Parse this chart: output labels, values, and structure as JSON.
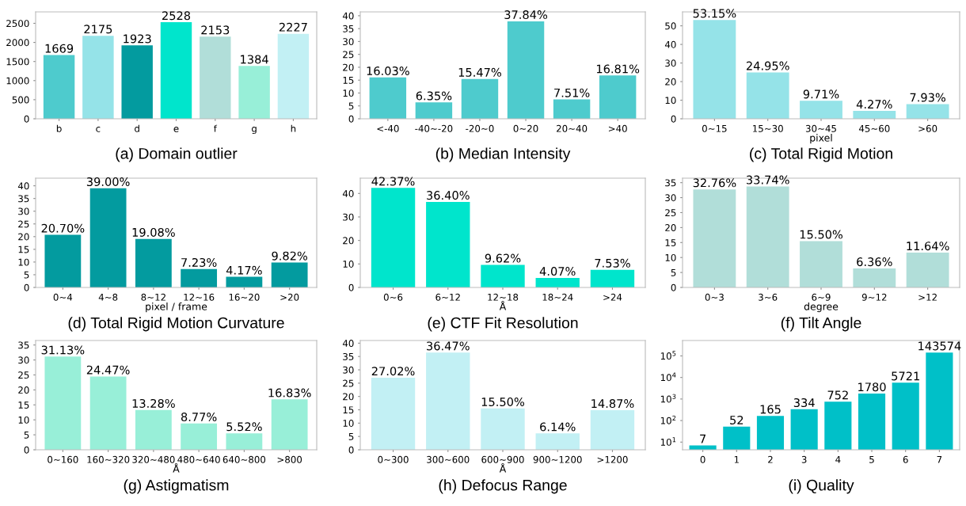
{
  "chart_data": [
    {
      "type": "bar",
      "title": "(a) Domain outlier",
      "categories": [
        "b",
        "c",
        "d",
        "e",
        "f",
        "g",
        "h"
      ],
      "values": [
        1669,
        2175,
        1923,
        2528,
        2153,
        1384,
        2227
      ],
      "colors": [
        "#4ecbcd",
        "#95e3e8",
        "#039b9f",
        "#00e5cc",
        "#b1ded9",
        "#98efd8",
        "#c2f0f4"
      ],
      "ylim": [
        0,
        2800
      ],
      "yticks": [
        0,
        500,
        1000,
        1500,
        2000,
        2500
      ],
      "data_labels": true,
      "grid": false,
      "legend": false
    },
    {
      "type": "bar",
      "title": "(b) Median Intensity",
      "categories": [
        "<-40",
        "-40~-20",
        "-20~0",
        "0~20",
        "20~40",
        ">40"
      ],
      "values": [
        16.03,
        6.35,
        15.47,
        37.84,
        7.51,
        16.81
      ],
      "value_labels": [
        "16.03%",
        "6.35%",
        "15.47%",
        "37.84%",
        "7.51%",
        "16.81%"
      ],
      "colors": [
        "#4ecbcd",
        "#4ecbcd",
        "#4ecbcd",
        "#4ecbcd",
        "#4ecbcd",
        "#4ecbcd"
      ],
      "ylim": [
        0,
        41.5
      ],
      "yticks": [
        0,
        5,
        10,
        15,
        20,
        25,
        30,
        35,
        40
      ],
      "grid": false,
      "legend": false
    },
    {
      "type": "bar",
      "title": "(c) Total Rigid Motion",
      "xlabel": "pixel",
      "categories": [
        "0~15",
        "15~30",
        "30~45",
        "45~60",
        ">60"
      ],
      "values": [
        53.15,
        24.95,
        9.71,
        4.27,
        7.93
      ],
      "value_labels": [
        "53.15%",
        "24.95%",
        "9.71%",
        "4.27%",
        "7.93%"
      ],
      "colors": [
        "#95e3e8",
        "#95e3e8",
        "#95e3e8",
        "#95e3e8",
        "#95e3e8"
      ],
      "ylim": [
        0,
        57.5
      ],
      "yticks": [
        0,
        10,
        20,
        30,
        40,
        50
      ],
      "grid": false,
      "legend": false
    },
    {
      "type": "bar",
      "title": "(d) Total Rigid Motion Curvature",
      "xlabel": "pixel / frame",
      "categories": [
        "0~4",
        "4~8",
        "8~12",
        "12~16",
        "16~20",
        ">20"
      ],
      "values": [
        20.7,
        39.0,
        19.08,
        7.23,
        4.17,
        9.82
      ],
      "value_labels": [
        "20.70%",
        "39.00%",
        "19.08%",
        "7.23%",
        "4.17%",
        "9.82%"
      ],
      "colors": [
        "#039b9f",
        "#039b9f",
        "#039b9f",
        "#039b9f",
        "#039b9f",
        "#039b9f"
      ],
      "ylim": [
        0,
        43
      ],
      "yticks": [
        0,
        5,
        10,
        15,
        20,
        25,
        30,
        35,
        40
      ],
      "grid": false,
      "legend": false
    },
    {
      "type": "bar",
      "title": "(e) CTF Fit Resolution",
      "xlabel": "Å",
      "categories": [
        "0~6",
        "6~12",
        "12~18",
        "18~24",
        ">24"
      ],
      "values": [
        42.37,
        36.4,
        9.62,
        4.07,
        7.53
      ],
      "value_labels": [
        "42.37%",
        "36.40%",
        "9.62%",
        "4.07%",
        "7.53%"
      ],
      "colors": [
        "#00e5cc",
        "#00e5cc",
        "#00e5cc",
        "#00e5cc",
        "#00e5cc"
      ],
      "ylim": [
        0,
        46.5
      ],
      "yticks": [
        0,
        10,
        20,
        30,
        40
      ],
      "grid": false,
      "legend": false
    },
    {
      "type": "bar",
      "title": "(f) Tilt Angle",
      "xlabel": "degree",
      "categories": [
        "0~3",
        "3~6",
        "6~9",
        "9~12",
        ">12"
      ],
      "values": [
        32.76,
        33.74,
        15.5,
        6.36,
        11.64
      ],
      "value_labels": [
        "32.76%",
        "33.74%",
        "15.50%",
        "6.36%",
        "11.64%"
      ],
      "colors": [
        "#b1ded9",
        "#b1ded9",
        "#b1ded9",
        "#b1ded9",
        "#b1ded9"
      ],
      "ylim": [
        0,
        36.5
      ],
      "yticks": [
        0,
        5,
        10,
        15,
        20,
        25,
        30,
        35
      ],
      "grid": false,
      "legend": false
    },
    {
      "type": "bar",
      "title": "(g) Astigmatism",
      "xlabel": "Å",
      "categories": [
        "0~160",
        "160~320",
        "320~480",
        "480~640",
        "640~800",
        ">800"
      ],
      "values": [
        31.13,
        24.47,
        13.28,
        8.77,
        5.52,
        16.83
      ],
      "value_labels": [
        "31.13%",
        "24.47%",
        "13.28%",
        "8.77%",
        "5.52%",
        "16.83%"
      ],
      "colors": [
        "#98efd8",
        "#98efd8",
        "#98efd8",
        "#98efd8",
        "#98efd8",
        "#98efd8"
      ],
      "ylim": [
        0,
        36.5
      ],
      "yticks": [
        0,
        5,
        10,
        15,
        20,
        25,
        30,
        35
      ],
      "grid": false,
      "legend": false
    },
    {
      "type": "bar",
      "title": "(h) Defocus Range",
      "xlabel": "Å",
      "categories": [
        "0~300",
        "300~600",
        "600~900",
        "900~1200",
        ">1200"
      ],
      "values": [
        27.02,
        36.47,
        15.5,
        6.14,
        14.87
      ],
      "value_labels": [
        "27.02%",
        "36.47%",
        "15.50%",
        "6.14%",
        "14.87%"
      ],
      "colors": [
        "#c2f0f4",
        "#c2f0f4",
        "#c2f0f4",
        "#c2f0f4",
        "#c2f0f4"
      ],
      "ylim": [
        0,
        41
      ],
      "yticks": [
        0,
        5,
        10,
        15,
        20,
        25,
        30,
        35,
        40
      ],
      "grid": false,
      "legend": false
    },
    {
      "type": "bar",
      "title": "(i) Quality",
      "categories": [
        "0",
        "1",
        "2",
        "3",
        "4",
        "5",
        "6",
        "7"
      ],
      "values": [
        7,
        52,
        165,
        334,
        752,
        1780,
        5721,
        143574
      ],
      "colors": [
        "#00c0c8",
        "#00c0c8",
        "#00c0c8",
        "#00c0c8",
        "#00c0c8",
        "#00c0c8",
        "#00c0c8",
        "#00c0c8"
      ],
      "log": true,
      "ylim": [
        4.4,
        520000
      ],
      "yticks": [
        {
          "value": 10,
          "label": "10$^{1}$"
        },
        {
          "value": 100,
          "label": "10$^{2}$"
        },
        {
          "value": 1000,
          "label": "10$^{3}$"
        },
        {
          "value": 10000,
          "label": "10$^{4}$"
        },
        {
          "value": 100000,
          "label": "10$^{5}$"
        }
      ],
      "data_labels": true,
      "grid": false,
      "legend": false
    }
  ]
}
